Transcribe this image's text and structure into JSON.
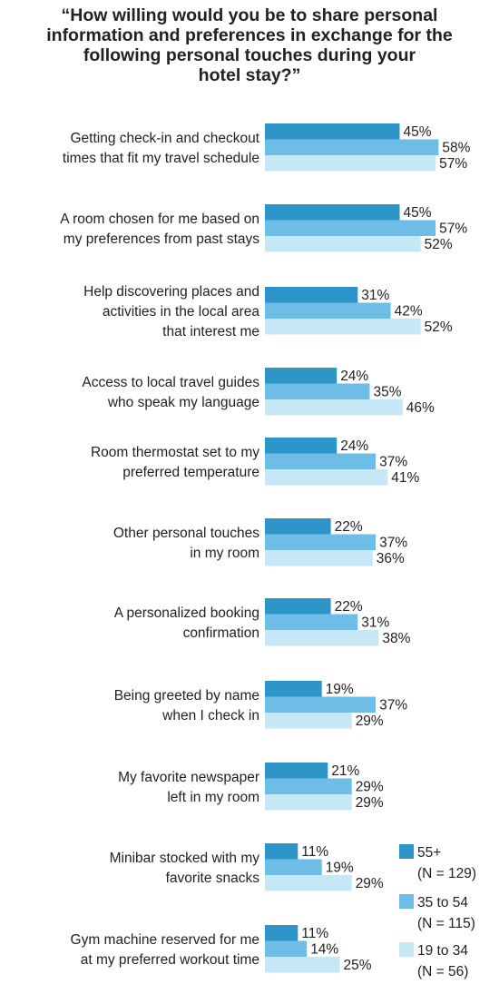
{
  "chart_data": {
    "type": "bar",
    "orientation": "horizontal",
    "title_lines": [
      "“How willing would you be to share personal",
      "information and preferences in exchange for the",
      "following personal touches during your",
      "hotel stay?”"
    ],
    "categories": [
      [
        "Getting check-in and checkout",
        "times that fit my travel schedule"
      ],
      [
        "A room chosen for me based on",
        "my preferences from past stays"
      ],
      [
        "Help discovering places and",
        "activities in the local area",
        "that interest me"
      ],
      [
        "Access to local travel guides",
        "who speak my language"
      ],
      [
        "Room thermostat set to my",
        "preferred temperature"
      ],
      [
        "Other personal touches",
        "in my room"
      ],
      [
        "A personalized booking",
        "confirmation"
      ],
      [
        "Being greeted by name",
        "when I check in"
      ],
      [
        "My favorite newspaper",
        "left in my room"
      ],
      [
        "Minibar stocked with my",
        "favorite snacks"
      ],
      [
        "Gym machine reserved for me",
        "at my preferred workout time"
      ]
    ],
    "series": [
      {
        "name": "55+",
        "n_label": "(N = 129)",
        "color": "#2e95c8",
        "values": [
          45,
          45,
          31,
          24,
          24,
          22,
          22,
          19,
          21,
          11,
          11
        ]
      },
      {
        "name": "35 to 54",
        "n_label": "(N = 115)",
        "color": "#6dbde6",
        "values": [
          58,
          57,
          42,
          35,
          37,
          37,
          31,
          37,
          29,
          19,
          14
        ]
      },
      {
        "name": "19 to 34",
        "n_label": "(N = 56)",
        "color": "#c6e7f5",
        "values": [
          57,
          52,
          52,
          46,
          41,
          36,
          38,
          29,
          29,
          29,
          25
        ]
      }
    ],
    "value_suffix": "%",
    "xlim": [
      0,
      100
    ],
    "legend_position": "bottom-right"
  }
}
